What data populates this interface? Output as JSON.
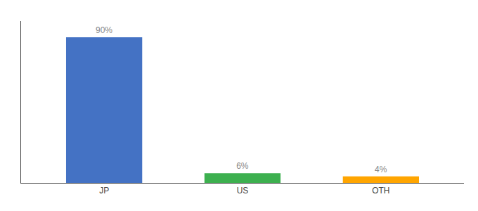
{
  "chart_data": {
    "type": "bar",
    "categories": [
      "JP",
      "US",
      "OTH"
    ],
    "values": [
      90,
      6,
      4
    ],
    "value_labels": [
      "90%",
      "6%",
      "4%"
    ],
    "colors": [
      "#4472C4",
      "#3DB04F",
      "#FFA500"
    ],
    "ylim": [
      0,
      100
    ],
    "data_labels": true,
    "tick_labels": "x",
    "grid": false
  }
}
